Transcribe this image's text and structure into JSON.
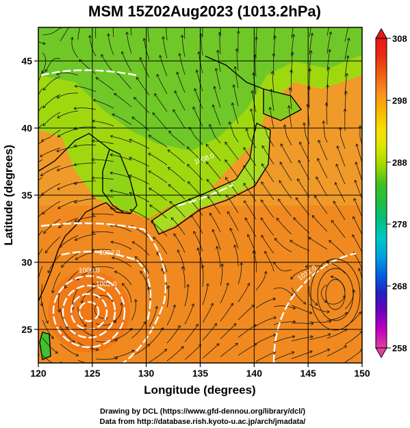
{
  "title": "MSM 15Z02Aug2023 (1013.2hPa)",
  "xlabel": "Longitude (degrees)",
  "ylabel": "Latitude  (degrees)",
  "x_ticks": [
    "120",
    "125",
    "130",
    "135",
    "140",
    "145",
    "150"
  ],
  "y_ticks": [
    "25",
    "30",
    "35",
    "40",
    "45"
  ],
  "colorbar": {
    "ticks": [
      "308",
      "298",
      "288",
      "278",
      "268",
      "258"
    ],
    "range": [
      258,
      308
    ],
    "colors": [
      "#e0409a",
      "#c000c0",
      "#7000c0",
      "#2020c0",
      "#0060e0",
      "#00a0e0",
      "#00c8c8",
      "#00c080",
      "#20c040",
      "#40c020",
      "#a0d800",
      "#d8e800",
      "#f8e000",
      "#f8b800",
      "#f89020",
      "#f06010",
      "#e83010",
      "#e81818"
    ]
  },
  "contour_labels": [
    "1002.0",
    "1000.0",
    "1002.0",
    "1008.0",
    "1012.0"
  ],
  "credits": {
    "line1": "Drawing by DCL (https://www.gfd-dennou.org/library/dcl/)",
    "line2": "Data from http://database.rish.kyoto-u.ac.jp/arch/jmadata/"
  },
  "map_data": {
    "lon_range": [
      120,
      150
    ],
    "lat_range": [
      22.5,
      47.5
    ],
    "variable": "temperature (K) with streamlines and pressure contours (hPa)",
    "typhoon_center": [
      126,
      26.5
    ]
  }
}
